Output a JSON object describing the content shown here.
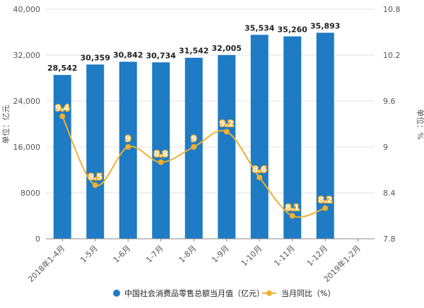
{
  "chart_data": {
    "type": "bar",
    "categories": [
      "2018年1-4月",
      "1-5月",
      "1-6月",
      "1-7月",
      "1-8月",
      "1-9月",
      "1-10月",
      "1-11月",
      "1-12月",
      "2019年1-2月"
    ],
    "series": [
      {
        "name": "中国社会消费品零售总额当月值（亿元）",
        "type": "bar",
        "axis": "left",
        "color": "#1e7bc4",
        "values": [
          28542,
          30359,
          30842,
          30734,
          31542,
          32005,
          35534,
          35260,
          35893,
          null
        ],
        "labels": [
          "28,542",
          "30,359",
          "30,842",
          "30,734",
          "31,542",
          "32,005",
          "35,534",
          "35,260",
          "35,893",
          ""
        ]
      },
      {
        "name": "当月同比（%）",
        "type": "line",
        "axis": "right",
        "color": "#f0b030",
        "values": [
          9.4,
          8.5,
          9,
          8.8,
          9,
          9.2,
          8.6,
          8.1,
          8.2,
          null
        ],
        "labels": [
          "9.4",
          "8.5",
          "9",
          "8.8",
          "9",
          "9.2",
          "8.6",
          "8.1",
          "8.2",
          ""
        ]
      }
    ],
    "ylabel": "单位：亿元",
    "y2label": "单位：%",
    "ylim": [
      0,
      40000
    ],
    "y2lim": [
      7.8,
      10.8
    ],
    "yticks": [
      "0",
      "8000",
      "16,000",
      "24,000",
      "32,000",
      "40,000"
    ],
    "y2ticks": [
      "7.8",
      "8.4",
      "9",
      "9.6",
      "10.2",
      "10.8"
    ],
    "grid": true,
    "legend_position": "bottom"
  }
}
